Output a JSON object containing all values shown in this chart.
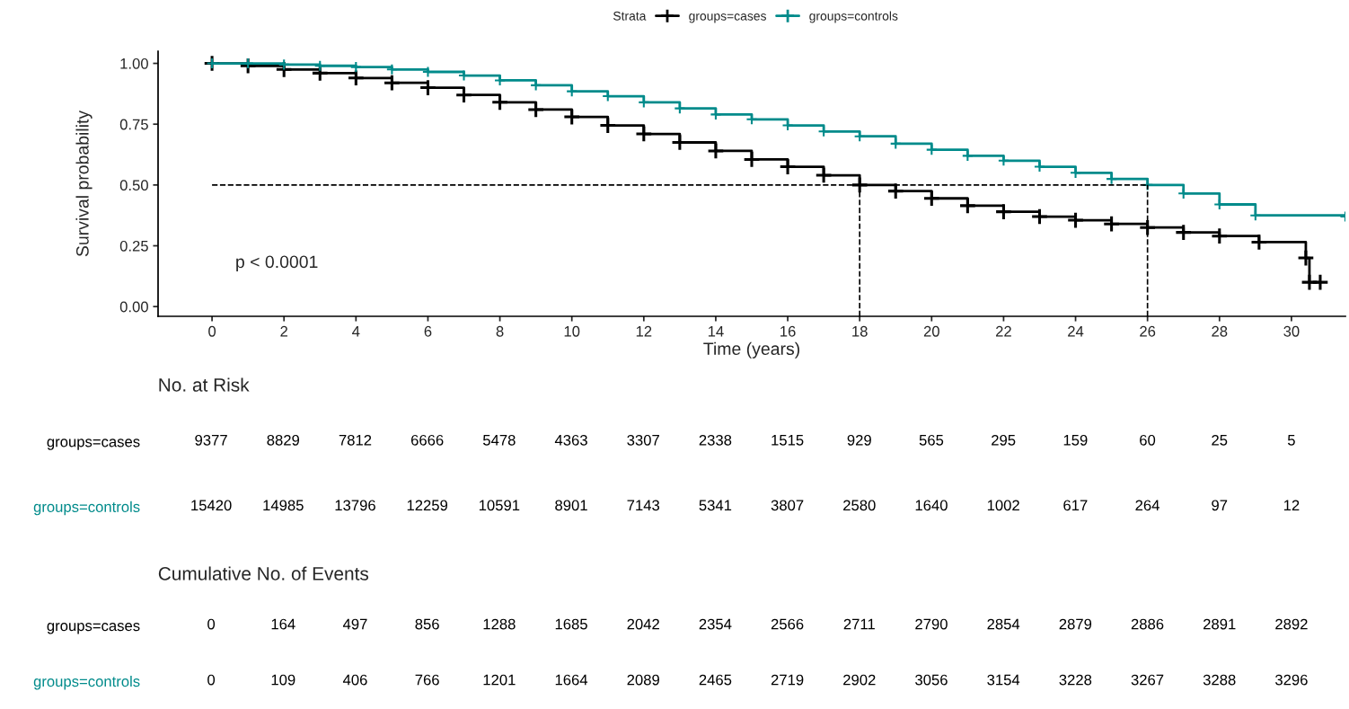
{
  "chart_data": [
    {
      "type": "step",
      "xlabel": "Time (years)",
      "ylabel": "Survival probability",
      "legend_title": "Strata",
      "legend": "top",
      "marker": "cross",
      "line_style": "solid",
      "grid": false,
      "xlim": [
        -1.5,
        31.5
      ],
      "ylim": [
        -0.04,
        1.05
      ],
      "xticks": [
        0,
        2,
        4,
        6,
        8,
        10,
        12,
        14,
        16,
        18,
        20,
        22,
        24,
        26,
        28,
        30
      ],
      "yticks": [
        {
          "value": 0,
          "label": "0.00"
        },
        {
          "value": 0.25,
          "label": "0.25"
        },
        {
          "value": 0.5,
          "label": "0.50"
        },
        {
          "value": 0.75,
          "label": "0.75"
        },
        {
          "value": 1,
          "label": "1.00"
        }
      ],
      "series": [
        {
          "name": "groups=cases",
          "color": "#000000",
          "x": [
            0,
            1,
            2,
            3,
            4,
            5,
            6,
            7,
            8,
            9,
            10,
            11,
            12,
            13,
            14,
            15,
            16,
            17,
            18,
            19,
            20,
            21,
            22,
            23,
            24,
            25,
            26,
            27,
            28,
            29.1,
            30.4,
            30.5,
            30.8
          ],
          "values": [
            1.0,
            0.99,
            0.975,
            0.96,
            0.94,
            0.92,
            0.9,
            0.87,
            0.84,
            0.81,
            0.78,
            0.745,
            0.71,
            0.675,
            0.64,
            0.605,
            0.575,
            0.54,
            0.5,
            0.475,
            0.445,
            0.415,
            0.39,
            0.37,
            0.355,
            0.34,
            0.325,
            0.305,
            0.29,
            0.265,
            0.2,
            0.1,
            0.1
          ]
        },
        {
          "name": "groups=controls",
          "color": "#008b8b",
          "x": [
            0,
            1,
            2,
            3,
            4,
            5,
            6,
            7,
            8,
            9,
            10,
            11,
            12,
            13,
            14,
            15,
            16,
            17,
            18,
            19,
            20,
            21,
            22,
            23,
            24,
            25,
            26,
            27,
            28,
            29,
            31.5
          ],
          "values": [
            1.0,
            1.0,
            0.995,
            0.99,
            0.985,
            0.975,
            0.965,
            0.95,
            0.93,
            0.91,
            0.885,
            0.865,
            0.84,
            0.815,
            0.79,
            0.77,
            0.745,
            0.72,
            0.7,
            0.67,
            0.645,
            0.62,
            0.6,
            0.575,
            0.55,
            0.525,
            0.5,
            0.465,
            0.42,
            0.375,
            0.37
          ]
        }
      ],
      "ref_lines": [
        {
          "axis": "y",
          "value": 0.5,
          "line_style": "dashed"
        },
        {
          "axis": "x",
          "value": 18,
          "line_style": "dashed"
        },
        {
          "axis": "x",
          "value": 26,
          "line_style": "dashed"
        }
      ],
      "annotations": [
        "p < 0.0001"
      ]
    },
    {
      "type": "heatmap",
      "title": "No. at Risk",
      "data_labels": true,
      "categories": [
        null,
        null,
        null,
        null,
        null,
        null,
        null,
        null,
        null,
        null,
        null,
        null,
        null,
        null,
        null,
        null
      ],
      "y_categories": [
        "groups=cases",
        "groups=controls"
      ],
      "colors": [
        "#000000",
        "#008b8b"
      ],
      "cells": [
        [
          9377,
          8829,
          7812,
          6666,
          5478,
          4363,
          3307,
          2338,
          1515,
          929,
          565,
          295,
          159,
          60,
          25,
          5
        ],
        [
          15420,
          14985,
          13796,
          12259,
          10591,
          8901,
          7143,
          5341,
          3807,
          2580,
          1640,
          1002,
          617,
          264,
          97,
          12
        ]
      ]
    },
    {
      "type": "heatmap",
      "title": "Cumulative No. of Events",
      "data_labels": true,
      "categories": [
        null,
        null,
        null,
        null,
        null,
        null,
        null,
        null,
        null,
        null,
        null,
        null,
        null,
        null,
        null,
        null
      ],
      "y_categories": [
        "groups=cases",
        "groups=controls"
      ],
      "colors": [
        "#000000",
        "#008b8b"
      ],
      "cells": [
        [
          0,
          164,
          497,
          856,
          1288,
          1685,
          2042,
          2354,
          2566,
          2711,
          2790,
          2854,
          2879,
          2886,
          2891,
          2892
        ],
        [
          0,
          109,
          406,
          766,
          1201,
          1664,
          2089,
          2465,
          2719,
          2902,
          3056,
          3154,
          3228,
          3267,
          3288,
          3296
        ]
      ]
    }
  ]
}
